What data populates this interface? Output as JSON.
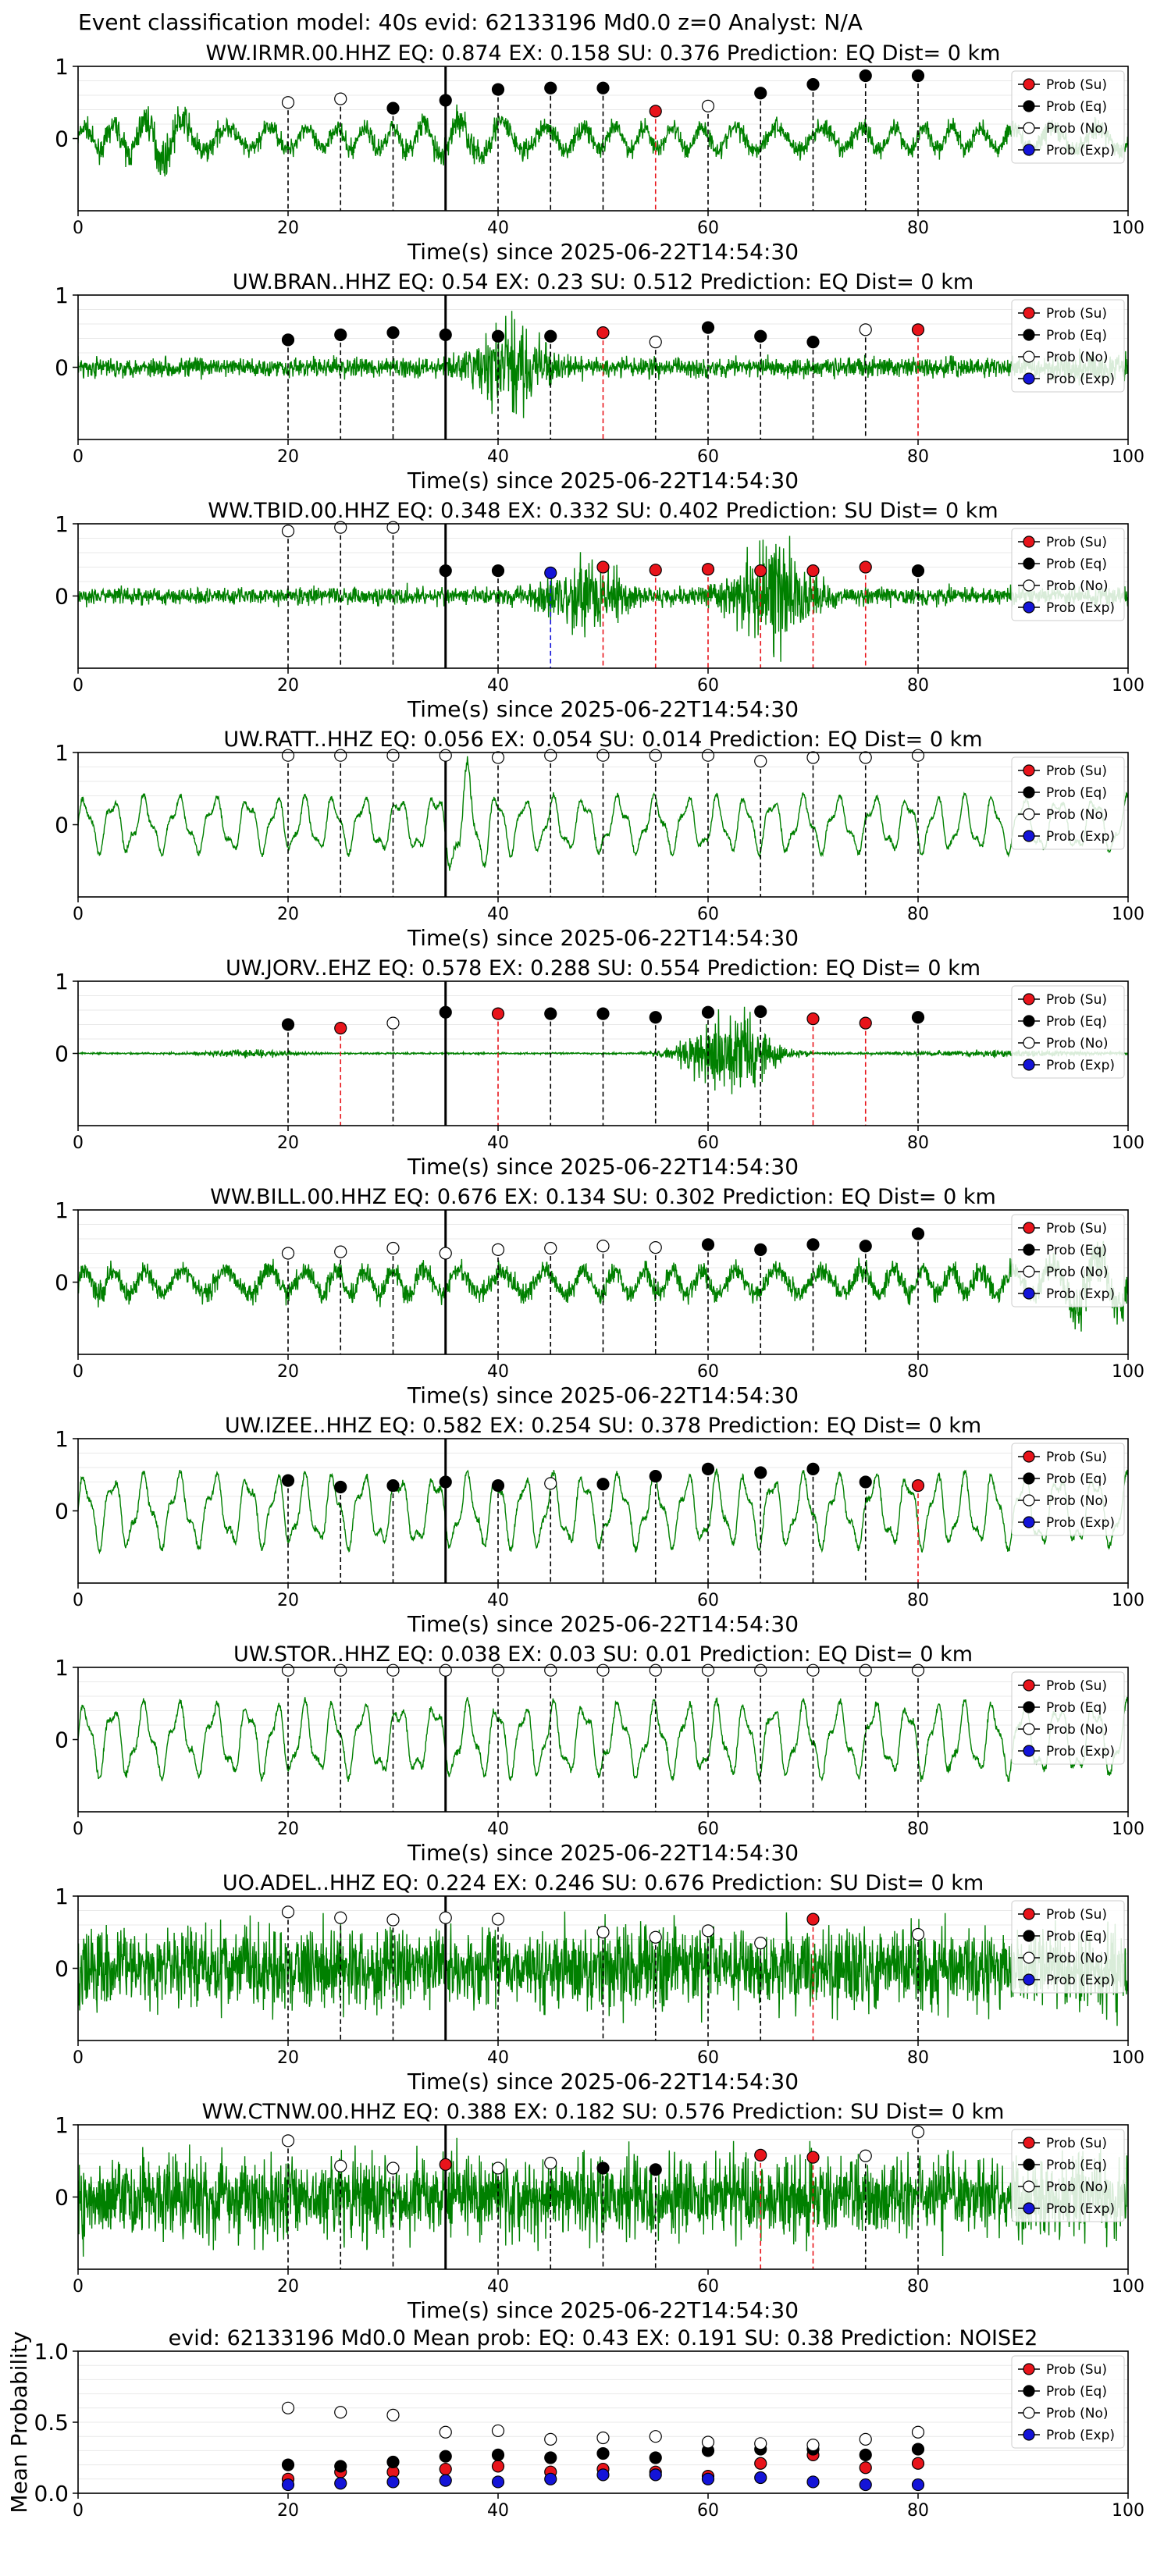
{
  "figure": {
    "suptitle": "Event classification model: 40s evid: 62133196 Md0.0 z=0 Analyst: N/A",
    "xlabel": "Time(s) since 2025-06-22T14:54:30",
    "legend_labels": [
      "Prob (Su)",
      "Prob (Eq)",
      "Prob (No)",
      "Prob (Exp)"
    ],
    "colors": {
      "waveform": "#008000",
      "su": "#e8141b",
      "eq": "#000000",
      "no": "#ffffff",
      "exp": "#1414d8",
      "pick_line": "#000000"
    }
  },
  "chart_data": [
    {
      "type": "line",
      "station": "WW.IRMR.00.HHZ",
      "title": "WW.IRMR.00.HHZ   EQ: 0.874  EX: 0.158  SU: 0.376   Prediction: EQ    Dist= 0 km",
      "xlim": [
        0,
        100
      ],
      "ylim": [
        -1,
        1
      ],
      "xticks": [
        0,
        20,
        40,
        60,
        80,
        100
      ],
      "yticks": [
        0,
        1
      ],
      "pick_time": 35,
      "wave_style": "broadband",
      "points": [
        {
          "t": 20,
          "cls": "No",
          "p": 0.5
        },
        {
          "t": 25,
          "cls": "No",
          "p": 0.55
        },
        {
          "t": 30,
          "cls": "Eq",
          "p": 0.42
        },
        {
          "t": 35,
          "cls": "Eq",
          "p": 0.53
        },
        {
          "t": 40,
          "cls": "Eq",
          "p": 0.68
        },
        {
          "t": 45,
          "cls": "Eq",
          "p": 0.7
        },
        {
          "t": 50,
          "cls": "Eq",
          "p": 0.7
        },
        {
          "t": 55,
          "cls": "Su",
          "p": 0.38
        },
        {
          "t": 60,
          "cls": "No",
          "p": 0.45
        },
        {
          "t": 65,
          "cls": "Eq",
          "p": 0.63
        },
        {
          "t": 70,
          "cls": "Eq",
          "p": 0.75
        },
        {
          "t": 75,
          "cls": "Eq",
          "p": 0.87
        },
        {
          "t": 80,
          "cls": "Eq",
          "p": 0.87
        }
      ]
    },
    {
      "type": "line",
      "station": "UW.BRAN..HHZ",
      "title": "UW.BRAN..HHZ   EQ: 0.54  EX: 0.23  SU: 0.512   Prediction: EQ    Dist= 0 km",
      "xlim": [
        0,
        100
      ],
      "ylim": [
        -1,
        1
      ],
      "xticks": [
        0,
        20,
        40,
        60,
        80,
        100
      ],
      "yticks": [
        0,
        1
      ],
      "pick_time": 35,
      "wave_style": "burst40",
      "points": [
        {
          "t": 20,
          "cls": "Eq",
          "p": 0.38
        },
        {
          "t": 25,
          "cls": "Eq",
          "p": 0.45
        },
        {
          "t": 30,
          "cls": "Eq",
          "p": 0.48
        },
        {
          "t": 35,
          "cls": "Eq",
          "p": 0.45
        },
        {
          "t": 40,
          "cls": "Eq",
          "p": 0.43
        },
        {
          "t": 45,
          "cls": "Eq",
          "p": 0.43
        },
        {
          "t": 50,
          "cls": "Su",
          "p": 0.48
        },
        {
          "t": 55,
          "cls": "No",
          "p": 0.35
        },
        {
          "t": 60,
          "cls": "Eq",
          "p": 0.55
        },
        {
          "t": 65,
          "cls": "Eq",
          "p": 0.43
        },
        {
          "t": 70,
          "cls": "Eq",
          "p": 0.35
        },
        {
          "t": 75,
          "cls": "No",
          "p": 0.52
        },
        {
          "t": 80,
          "cls": "Su",
          "p": 0.52
        }
      ]
    },
    {
      "type": "line",
      "station": "WW.TBID.00.HHZ",
      "title": "WW.TBID.00.HHZ   EQ: 0.348  EX: 0.332  SU: 0.402   Prediction: SU    Dist= 0 km",
      "xlim": [
        0,
        100
      ],
      "ylim": [
        -1,
        1
      ],
      "xticks": [
        0,
        20,
        40,
        60,
        80,
        100
      ],
      "yticks": [
        0,
        1
      ],
      "pick_time": 35,
      "wave_style": "burst50_65",
      "points": [
        {
          "t": 20,
          "cls": "No",
          "p": 0.9
        },
        {
          "t": 25,
          "cls": "No",
          "p": 0.95
        },
        {
          "t": 30,
          "cls": "No",
          "p": 0.95
        },
        {
          "t": 35,
          "cls": "Eq",
          "p": 0.35
        },
        {
          "t": 40,
          "cls": "Eq",
          "p": 0.35
        },
        {
          "t": 45,
          "cls": "Exp",
          "p": 0.32
        },
        {
          "t": 50,
          "cls": "Su",
          "p": 0.4
        },
        {
          "t": 55,
          "cls": "Su",
          "p": 0.36
        },
        {
          "t": 60,
          "cls": "Su",
          "p": 0.37
        },
        {
          "t": 65,
          "cls": "Su",
          "p": 0.35
        },
        {
          "t": 70,
          "cls": "Su",
          "p": 0.35
        },
        {
          "t": 75,
          "cls": "Su",
          "p": 0.4
        },
        {
          "t": 80,
          "cls": "Eq",
          "p": 0.35
        }
      ]
    },
    {
      "type": "line",
      "station": "UW.RATT..HHZ",
      "title": "UW.RATT..HHZ   EQ: 0.056  EX: 0.054  SU: 0.014   Prediction: EQ    Dist= 0 km",
      "xlim": [
        0,
        100
      ],
      "ylim": [
        -1,
        1
      ],
      "xticks": [
        0,
        20,
        40,
        60,
        80,
        100
      ],
      "yticks": [
        0,
        1
      ],
      "pick_time": 35,
      "wave_style": "lowfreq",
      "points": [
        {
          "t": 20,
          "cls": "No",
          "p": 0.96
        },
        {
          "t": 25,
          "cls": "No",
          "p": 0.96
        },
        {
          "t": 30,
          "cls": "No",
          "p": 0.96
        },
        {
          "t": 35,
          "cls": "No",
          "p": 0.96
        },
        {
          "t": 40,
          "cls": "No",
          "p": 0.93
        },
        {
          "t": 45,
          "cls": "No",
          "p": 0.96
        },
        {
          "t": 50,
          "cls": "No",
          "p": 0.96
        },
        {
          "t": 55,
          "cls": "No",
          "p": 0.96
        },
        {
          "t": 60,
          "cls": "No",
          "p": 0.96
        },
        {
          "t": 65,
          "cls": "No",
          "p": 0.88
        },
        {
          "t": 70,
          "cls": "No",
          "p": 0.93
        },
        {
          "t": 75,
          "cls": "No",
          "p": 0.93
        },
        {
          "t": 80,
          "cls": "No",
          "p": 0.96
        }
      ]
    },
    {
      "type": "line",
      "station": "UW.JORV..EHZ",
      "title": "UW.JORV..EHZ   EQ: 0.578  EX: 0.288  SU: 0.554   Prediction: EQ    Dist= 0 km",
      "xlim": [
        0,
        100
      ],
      "ylim": [
        -1,
        1
      ],
      "xticks": [
        0,
        20,
        40,
        60,
        80,
        100
      ],
      "yticks": [
        0,
        1
      ],
      "pick_time": 35,
      "wave_style": "quiet_burst60",
      "points": [
        {
          "t": 20,
          "cls": "Eq",
          "p": 0.4
        },
        {
          "t": 25,
          "cls": "Su",
          "p": 0.35
        },
        {
          "t": 30,
          "cls": "No",
          "p": 0.42
        },
        {
          "t": 35,
          "cls": "Eq",
          "p": 0.57
        },
        {
          "t": 40,
          "cls": "Su",
          "p": 0.55
        },
        {
          "t": 45,
          "cls": "Eq",
          "p": 0.55
        },
        {
          "t": 50,
          "cls": "Eq",
          "p": 0.55
        },
        {
          "t": 55,
          "cls": "Eq",
          "p": 0.5
        },
        {
          "t": 60,
          "cls": "Eq",
          "p": 0.57
        },
        {
          "t": 65,
          "cls": "Eq",
          "p": 0.58
        },
        {
          "t": 70,
          "cls": "Su",
          "p": 0.48
        },
        {
          "t": 75,
          "cls": "Su",
          "p": 0.42
        },
        {
          "t": 80,
          "cls": "Eq",
          "p": 0.5
        }
      ]
    },
    {
      "type": "line",
      "station": "WW.BILL.00.HHZ",
      "title": "WW.BILL.00.HHZ   EQ: 0.676  EX: 0.134  SU: 0.302   Prediction: EQ    Dist= 0 km",
      "xlim": [
        0,
        100
      ],
      "ylim": [
        -1,
        1
      ],
      "xticks": [
        0,
        20,
        40,
        60,
        80,
        100
      ],
      "yticks": [
        0,
        1
      ],
      "pick_time": 35,
      "wave_style": "noisy",
      "points": [
        {
          "t": 20,
          "cls": "No",
          "p": 0.4
        },
        {
          "t": 25,
          "cls": "No",
          "p": 0.42
        },
        {
          "t": 30,
          "cls": "No",
          "p": 0.47
        },
        {
          "t": 35,
          "cls": "No",
          "p": 0.4
        },
        {
          "t": 40,
          "cls": "No",
          "p": 0.45
        },
        {
          "t": 45,
          "cls": "No",
          "p": 0.47
        },
        {
          "t": 50,
          "cls": "No",
          "p": 0.5
        },
        {
          "t": 55,
          "cls": "No",
          "p": 0.48
        },
        {
          "t": 60,
          "cls": "Eq",
          "p": 0.52
        },
        {
          "t": 65,
          "cls": "Eq",
          "p": 0.45
        },
        {
          "t": 70,
          "cls": "Eq",
          "p": 0.52
        },
        {
          "t": 75,
          "cls": "Eq",
          "p": 0.5
        },
        {
          "t": 80,
          "cls": "Eq",
          "p": 0.67
        }
      ]
    },
    {
      "type": "line",
      "station": "UW.IZEE..HHZ",
      "title": "UW.IZEE..HHZ   EQ: 0.582  EX: 0.254  SU: 0.378   Prediction: EQ    Dist= 0 km",
      "xlim": [
        0,
        100
      ],
      "ylim": [
        -1,
        1
      ],
      "xticks": [
        0,
        20,
        40,
        60,
        80,
        100
      ],
      "yticks": [
        0,
        1
      ],
      "pick_time": 35,
      "wave_style": "lowfreq_big",
      "points": [
        {
          "t": 20,
          "cls": "Eq",
          "p": 0.42
        },
        {
          "t": 25,
          "cls": "Eq",
          "p": 0.33
        },
        {
          "t": 30,
          "cls": "Eq",
          "p": 0.35
        },
        {
          "t": 35,
          "cls": "Eq",
          "p": 0.4
        },
        {
          "t": 40,
          "cls": "Eq",
          "p": 0.35
        },
        {
          "t": 45,
          "cls": "No",
          "p": 0.38
        },
        {
          "t": 50,
          "cls": "Eq",
          "p": 0.37
        },
        {
          "t": 55,
          "cls": "Eq",
          "p": 0.48
        },
        {
          "t": 60,
          "cls": "Eq",
          "p": 0.58
        },
        {
          "t": 65,
          "cls": "Eq",
          "p": 0.53
        },
        {
          "t": 70,
          "cls": "Eq",
          "p": 0.58
        },
        {
          "t": 75,
          "cls": "Eq",
          "p": 0.4
        },
        {
          "t": 80,
          "cls": "Su",
          "p": 0.35
        }
      ]
    },
    {
      "type": "line",
      "station": "UW.STOR..HHZ",
      "title": "UW.STOR..HHZ   EQ: 0.038  EX: 0.03  SU: 0.01   Prediction: EQ    Dist= 0 km",
      "xlim": [
        0,
        100
      ],
      "ylim": [
        -1,
        1
      ],
      "xticks": [
        0,
        20,
        40,
        60,
        80,
        100
      ],
      "yticks": [
        0,
        1
      ],
      "pick_time": 35,
      "wave_style": "lowfreq_big",
      "points": [
        {
          "t": 20,
          "cls": "No",
          "p": 0.96
        },
        {
          "t": 25,
          "cls": "No",
          "p": 0.96
        },
        {
          "t": 30,
          "cls": "No",
          "p": 0.96
        },
        {
          "t": 35,
          "cls": "No",
          "p": 0.96
        },
        {
          "t": 40,
          "cls": "No",
          "p": 0.96
        },
        {
          "t": 45,
          "cls": "No",
          "p": 0.96
        },
        {
          "t": 50,
          "cls": "No",
          "p": 0.96
        },
        {
          "t": 55,
          "cls": "No",
          "p": 0.96
        },
        {
          "t": 60,
          "cls": "No",
          "p": 0.96
        },
        {
          "t": 65,
          "cls": "No",
          "p": 0.96
        },
        {
          "t": 70,
          "cls": "No",
          "p": 0.96
        },
        {
          "t": 75,
          "cls": "No",
          "p": 0.96
        },
        {
          "t": 80,
          "cls": "No",
          "p": 0.96
        }
      ]
    },
    {
      "type": "line",
      "station": "UO.ADEL..HHZ",
      "title": "UO.ADEL..HHZ   EQ: 0.224  EX: 0.246  SU: 0.676   Prediction: SU    Dist= 0 km",
      "xlim": [
        0,
        100
      ],
      "ylim": [
        -1,
        1
      ],
      "xticks": [
        0,
        20,
        40,
        60,
        80,
        100
      ],
      "yticks": [
        0,
        1
      ],
      "pick_time": 35,
      "wave_style": "dense",
      "points": [
        {
          "t": 20,
          "cls": "No",
          "p": 0.78
        },
        {
          "t": 25,
          "cls": "No",
          "p": 0.7
        },
        {
          "t": 30,
          "cls": "No",
          "p": 0.67
        },
        {
          "t": 35,
          "cls": "No",
          "p": 0.7
        },
        {
          "t": 40,
          "cls": "No",
          "p": 0.68
        },
        {
          "t": 50,
          "cls": "No",
          "p": 0.5
        },
        {
          "t": 55,
          "cls": "No",
          "p": 0.43
        },
        {
          "t": 60,
          "cls": "No",
          "p": 0.52
        },
        {
          "t": 65,
          "cls": "No",
          "p": 0.35
        },
        {
          "t": 70,
          "cls": "Su",
          "p": 0.68
        },
        {
          "t": 80,
          "cls": "No",
          "p": 0.47
        }
      ]
    },
    {
      "type": "line",
      "station": "WW.CTNW.00.HHZ",
      "title": "WW.CTNW.00.HHZ   EQ: 0.388  EX: 0.182  SU: 0.576   Prediction: SU    Dist= 0 km",
      "xlim": [
        0,
        100
      ],
      "ylim": [
        -1,
        1
      ],
      "xticks": [
        0,
        20,
        40,
        60,
        80,
        100
      ],
      "yticks": [
        0,
        1
      ],
      "pick_time": 35,
      "wave_style": "dense",
      "points": [
        {
          "t": 20,
          "cls": "No",
          "p": 0.78
        },
        {
          "t": 25,
          "cls": "No",
          "p": 0.43
        },
        {
          "t": 30,
          "cls": "No",
          "p": 0.4
        },
        {
          "t": 35,
          "cls": "Su",
          "p": 0.45
        },
        {
          "t": 40,
          "cls": "No",
          "p": 0.4
        },
        {
          "t": 45,
          "cls": "No",
          "p": 0.47
        },
        {
          "t": 50,
          "cls": "Eq",
          "p": 0.4
        },
        {
          "t": 55,
          "cls": "Eq",
          "p": 0.38
        },
        {
          "t": 65,
          "cls": "Su",
          "p": 0.58
        },
        {
          "t": 70,
          "cls": "Su",
          "p": 0.55
        },
        {
          "t": 75,
          "cls": "No",
          "p": 0.57
        },
        {
          "t": 80,
          "cls": "No",
          "p": 0.9
        }
      ]
    },
    {
      "type": "scatter",
      "title": "evid: 62133196   Md0.0    Mean prob:    EQ: 0.43   EX: 0.191   SU: 0.38    Prediction: NOISE2",
      "ylabel": "Mean Probability",
      "xlim": [
        0,
        100
      ],
      "ylim": [
        0,
        1
      ],
      "xticks": [
        0,
        20,
        40,
        60,
        80,
        100
      ],
      "yticks": [
        0.0,
        0.5,
        1.0
      ],
      "x": [
        20,
        25,
        30,
        35,
        40,
        45,
        50,
        55,
        60,
        65,
        70,
        75,
        80
      ],
      "series": [
        {
          "name": "Prob (Su)",
          "cls": "Su",
          "values": [
            0.1,
            0.15,
            0.15,
            0.17,
            0.19,
            0.15,
            0.17,
            0.15,
            0.12,
            0.21,
            0.27,
            0.18,
            0.21
          ]
        },
        {
          "name": "Prob (Eq)",
          "cls": "Eq",
          "values": [
            0.2,
            0.19,
            0.22,
            0.26,
            0.27,
            0.25,
            0.28,
            0.25,
            0.3,
            0.31,
            0.31,
            0.27,
            0.31
          ]
        },
        {
          "name": "Prob (No)",
          "cls": "No",
          "values": [
            0.6,
            0.57,
            0.55,
            0.43,
            0.44,
            0.38,
            0.39,
            0.4,
            0.36,
            0.35,
            0.34,
            0.38,
            0.43
          ]
        },
        {
          "name": "Prob (Exp)",
          "cls": "Exp",
          "values": [
            0.06,
            0.07,
            0.08,
            0.09,
            0.08,
            0.1,
            0.13,
            0.13,
            0.1,
            0.11,
            0.08,
            0.06,
            0.06
          ]
        }
      ]
    }
  ]
}
